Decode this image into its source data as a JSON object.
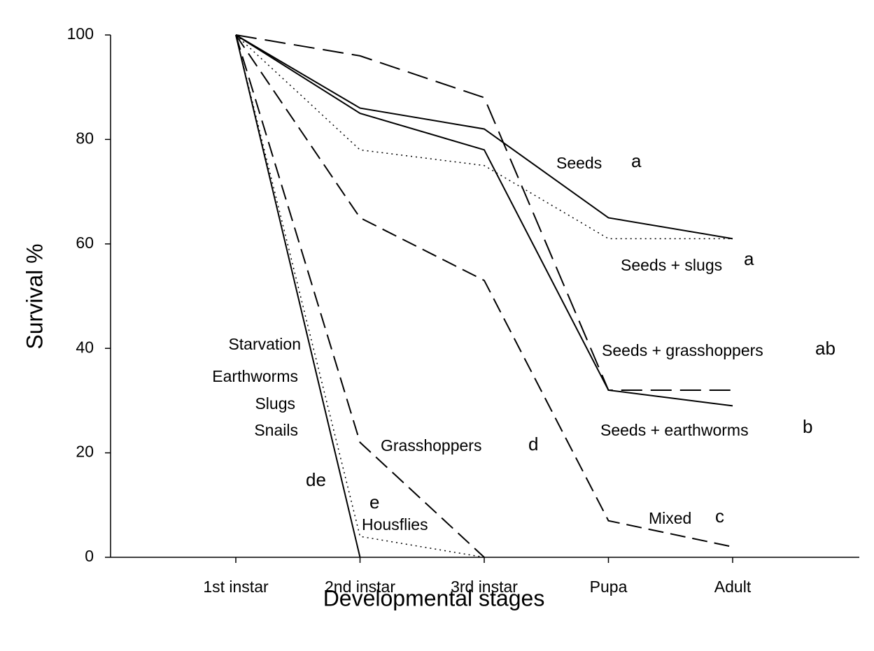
{
  "chart_data": {
    "type": "line",
    "x_label": "Developmental stages",
    "y_label": "Survival %",
    "categories": [
      "1st instar",
      "2nd instar",
      "3rd instar",
      "Pupa",
      "Adult"
    ],
    "ylim": [
      0,
      100
    ],
    "yticks": [
      0,
      20,
      40,
      60,
      80,
      100
    ],
    "series": [
      {
        "name": "Seeds",
        "color": "#000000",
        "dash": "solid",
        "values": [
          100,
          86,
          82,
          65,
          61
        ]
      },
      {
        "name": "Seeds + slugs",
        "color": "#000000",
        "dash": "dotted",
        "values": [
          100,
          78,
          75,
          61,
          61
        ]
      },
      {
        "name": "Seeds + grasshoppers",
        "color": "#000000",
        "dash": "longdash",
        "values": [
          100,
          96,
          88,
          32,
          32
        ]
      },
      {
        "name": "Seeds + earthworms",
        "color": "#000000",
        "dash": "solid",
        "values": [
          100,
          85,
          78,
          32,
          29
        ]
      },
      {
        "name": "Mixed",
        "color": "#000000",
        "dash": "dashed",
        "values": [
          100,
          65,
          53,
          7,
          2
        ]
      },
      {
        "name": "Grasshoppers",
        "color": "#000000",
        "dash": "dashed",
        "values": [
          100,
          22,
          0,
          null,
          null
        ]
      },
      {
        "name": "Housflies",
        "color": "#000000",
        "dash": "dotted",
        "values": [
          100,
          4,
          0,
          null,
          null
        ]
      },
      {
        "name": "Starvation",
        "color": "#000000",
        "dash": "solid",
        "values": [
          100,
          0,
          null,
          null,
          null
        ]
      }
    ],
    "annotations": [
      "a",
      "a",
      "ab",
      "b",
      "c",
      "d",
      "e",
      "de",
      "Earthworms",
      "Slugs",
      "Snails"
    ]
  }
}
